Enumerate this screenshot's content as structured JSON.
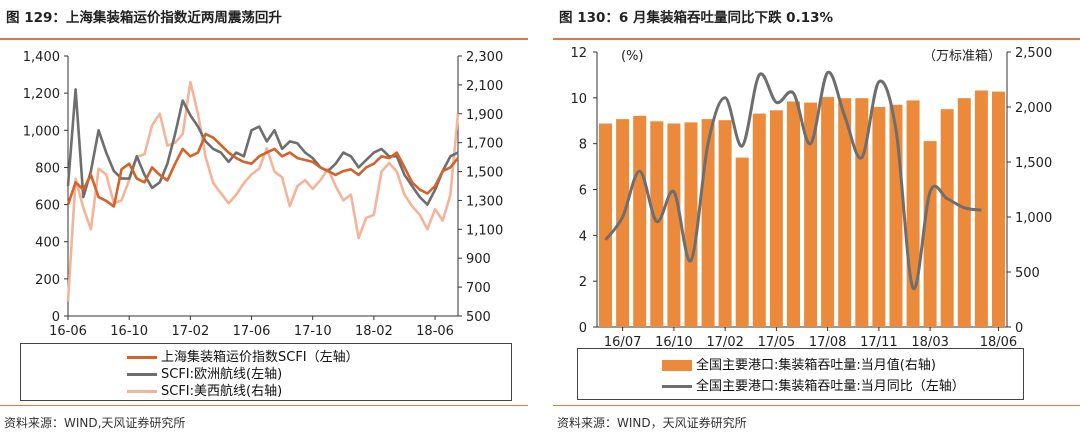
{
  "panels": [
    {
      "title": "图 129：上海集装箱运价指数近两周震荡回升",
      "source": "资料来源：WIND,天风证券研究所"
    },
    {
      "title": "图 130：6 月集装箱吞吐量同比下跌 0.13%",
      "source": "资料来源：WIND，天风证券研究所"
    }
  ],
  "chart_data": [
    {
      "type": "line",
      "title": "图 129：上海集装箱运价指数近两周震荡回升",
      "x_ticks": [
        "16-06",
        "16-10",
        "17-02",
        "17-06",
        "17-10",
        "18-02",
        "18-06"
      ],
      "y_left": {
        "ticks": [
          "0",
          "200",
          "400",
          "600",
          "800",
          "1,000",
          "1,200",
          "1,400"
        ],
        "range": [
          0,
          1400
        ]
      },
      "y_right": {
        "ticks": [
          "500",
          "700",
          "900",
          "1,100",
          "1,300",
          "1,500",
          "1,700",
          "1,900",
          "2,100",
          "2,300"
        ],
        "range": [
          500,
          2300
        ]
      },
      "legend_placement": "bottom",
      "colors": {
        "scfi": "#d4622a",
        "europe": "#6e6e6e",
        "uswest": "#f4b49a"
      },
      "series": [
        {
          "name": "上海集装箱运价指数SCFI（左轴）",
          "axis": "left",
          "x": [
            0,
            0.5,
            1,
            1.5,
            2,
            2.5,
            3,
            3.5,
            4,
            4.5,
            5,
            5.5,
            6,
            6.5,
            7,
            7.5,
            8,
            8.5,
            9,
            9.5,
            10,
            10.5,
            11,
            11.5,
            12,
            12.5,
            13,
            13.5,
            14,
            14.5,
            15,
            15.5,
            16,
            16.5,
            17,
            17.5,
            18,
            18.5,
            19,
            19.5,
            20,
            20.5,
            21,
            21.5,
            22,
            22.5,
            23,
            23.5,
            24,
            24.5,
            25,
            25.5
          ],
          "values": [
            600,
            720,
            680,
            760,
            640,
            620,
            590,
            790,
            820,
            740,
            720,
            800,
            760,
            730,
            820,
            900,
            860,
            880,
            980,
            960,
            920,
            880,
            850,
            830,
            820,
            860,
            880,
            900,
            860,
            880,
            850,
            840,
            830,
            800,
            780,
            760,
            780,
            790,
            760,
            800,
            820,
            860,
            850,
            880,
            800,
            720,
            680,
            660,
            700,
            780,
            800,
            850
          ]
        },
        {
          "name": "SCFI:欧洲航线(左轴)",
          "axis": "left",
          "x": [
            0,
            0.5,
            1,
            1.5,
            2,
            2.5,
            3,
            3.5,
            4,
            4.5,
            5,
            5.5,
            6,
            6.5,
            7,
            7.5,
            8,
            8.5,
            9,
            9.5,
            10,
            10.5,
            11,
            11.5,
            12,
            12.5,
            13,
            13.5,
            14,
            14.5,
            15,
            15.5,
            16,
            16.5,
            17,
            17.5,
            18,
            18.5,
            19,
            19.5,
            20,
            20.5,
            21,
            21.5,
            22,
            22.5,
            23,
            23.5,
            24,
            24.5,
            25,
            25.5
          ],
          "values": [
            700,
            1220,
            640,
            780,
            1000,
            880,
            780,
            740,
            740,
            860,
            760,
            690,
            720,
            820,
            980,
            1160,
            1080,
            1020,
            940,
            900,
            880,
            830,
            880,
            860,
            1000,
            1020,
            940,
            1000,
            900,
            940,
            930,
            880,
            850,
            800,
            780,
            820,
            880,
            860,
            800,
            840,
            880,
            900,
            860,
            860,
            760,
            700,
            640,
            600,
            680,
            780,
            860,
            880
          ]
        },
        {
          "name": "SCFI:美西航线(右轴)",
          "axis": "right",
          "x": [
            0,
            0.5,
            1,
            1.5,
            2,
            2.5,
            3,
            3.5,
            4,
            4.5,
            5,
            5.5,
            6,
            6.5,
            7,
            7.5,
            8,
            8.5,
            9,
            9.5,
            10,
            10.5,
            11,
            11.5,
            12,
            12.5,
            13,
            13.5,
            14,
            14.5,
            15,
            15.5,
            16,
            16.5,
            17,
            17.5,
            18,
            18.5,
            19,
            19.5,
            20,
            20.5,
            21,
            21.5,
            22,
            22.5,
            23,
            23.5,
            24,
            24.5,
            25,
            25.5
          ],
          "values": [
            600,
            1450,
            1250,
            1100,
            1520,
            1480,
            1280,
            1300,
            1440,
            1600,
            1620,
            1820,
            1900,
            1680,
            1700,
            1760,
            2120,
            1900,
            1600,
            1420,
            1350,
            1280,
            1340,
            1420,
            1480,
            1520,
            1660,
            1500,
            1460,
            1260,
            1400,
            1440,
            1380,
            1440,
            1520,
            1400,
            1300,
            1340,
            1040,
            1180,
            1200,
            1500,
            1560,
            1500,
            1340,
            1260,
            1200,
            1100,
            1240,
            1160,
            1340,
            1900
          ]
        }
      ]
    },
    {
      "type": "bar",
      "title": "图 130：6 月集装箱吞吐量同比下跌 0.13%",
      "x_ticks": [
        "16/07",
        "16/10",
        "17/02",
        "17/05",
        "17/08",
        "17/11",
        "18/03",
        "18/06"
      ],
      "y_left": {
        "unit_label": "(%)",
        "ticks": [
          "0",
          "2",
          "4",
          "6",
          "8",
          "10",
          "12"
        ],
        "range": [
          0,
          12
        ]
      },
      "y_right": {
        "unit_label": "（万标准箱）",
        "ticks": [
          "0",
          "500",
          "1,000",
          "1,500",
          "2,000",
          "2,500"
        ],
        "range": [
          0,
          2500
        ]
      },
      "legend_placement": "bottom",
      "colors": {
        "bar": "#ec8a3c",
        "line": "#6e6e6e"
      },
      "series": [
        {
          "name": "全国主要港口:集装箱吞吐量:当月值(右轴)",
          "type": "bar",
          "axis": "right",
          "values": [
            1850,
            1890,
            1920,
            1870,
            1850,
            1860,
            1890,
            1880,
            1540,
            1940,
            1970,
            2050,
            2040,
            2090,
            2080,
            2080,
            2000,
            2020,
            2060,
            1690,
            1980,
            2080,
            2150,
            2140
          ]
        },
        {
          "name": "全国主要港口:集装箱吞吐量:当月同比（左轴）",
          "type": "line",
          "axis": "left",
          "values": [
            3.8,
            4.8,
            6.8,
            4.6,
            5.9,
            2.9,
            8.0,
            10.0,
            7.9,
            11.0,
            9.8,
            10.2,
            8.0,
            11.1,
            9.2,
            7.4,
            10.7,
            8.6,
            1.7,
            5.9,
            5.6,
            5.2,
            5.1,
            null
          ]
        }
      ]
    }
  ]
}
